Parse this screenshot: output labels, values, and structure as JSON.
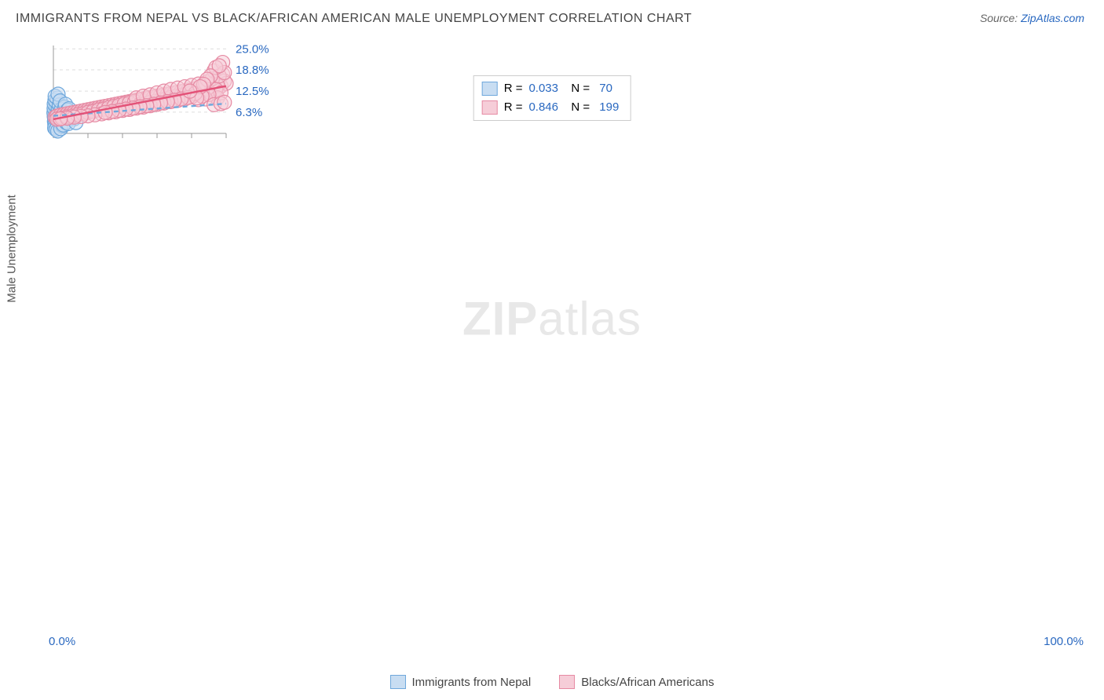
{
  "header": {
    "title": "IMMIGRANTS FROM NEPAL VS BLACK/AFRICAN AMERICAN MALE UNEMPLOYMENT CORRELATION CHART",
    "source_prefix": "Source: ",
    "source_link": "ZipAtlas.com"
  },
  "chart": {
    "type": "scatter",
    "ylabel": "Male Unemployment",
    "xlim": [
      0,
      100
    ],
    "ylim": [
      0,
      26
    ],
    "xticks": [
      0,
      20,
      40,
      60,
      80,
      100
    ],
    "xtick_labels": {
      "0": "0.0%",
      "100": "100.0%"
    },
    "ygrid": [
      6.3,
      12.5,
      18.8,
      25.0
    ],
    "ytick_labels": [
      "6.3%",
      "12.5%",
      "18.8%",
      "25.0%"
    ],
    "background_color": "#ffffff",
    "grid_color": "#dddddd",
    "axis_color": "#999999",
    "watermark": "ZIPatlas",
    "marker_radius": 9,
    "marker_stroke_width": 1.2,
    "trend_line_width": 2.4,
    "series": [
      {
        "key": "nepal",
        "label": "Immigrants from Nepal",
        "R": "0.033",
        "N": "70",
        "fill": "#c8ddf2",
        "stroke": "#6fa8dc",
        "fill_opacity": 0.55,
        "trend": {
          "x1": 0,
          "y1": 5.2,
          "x2": 100,
          "y2": 8.8,
          "dashed": true,
          "color": "#6fa8dc"
        },
        "points": [
          [
            0.5,
            5.0
          ],
          [
            0.7,
            5.4
          ],
          [
            1.0,
            4.7
          ],
          [
            1.2,
            5.8
          ],
          [
            0.3,
            6.1
          ],
          [
            0.9,
            4.1
          ],
          [
            1.4,
            6.7
          ],
          [
            0.6,
            3.6
          ],
          [
            2.0,
            7.0
          ],
          [
            2.3,
            4.0
          ],
          [
            1.8,
            5.6
          ],
          [
            0.4,
            7.4
          ],
          [
            1.1,
            3.1
          ],
          [
            2.6,
            6.3
          ],
          [
            3.0,
            5.1
          ],
          [
            0.8,
            2.6
          ],
          [
            1.6,
            8.1
          ],
          [
            2.1,
            3.3
          ],
          [
            3.3,
            4.6
          ],
          [
            0.5,
            8.7
          ],
          [
            1.3,
            2.1
          ],
          [
            2.8,
            7.5
          ],
          [
            3.6,
            5.8
          ],
          [
            0.7,
            1.6
          ],
          [
            4.0,
            4.3
          ],
          [
            1.9,
            9.2
          ],
          [
            2.4,
            2.7
          ],
          [
            4.4,
            6.1
          ],
          [
            0.9,
            9.8
          ],
          [
            3.1,
            3.5
          ],
          [
            4.8,
            5.4
          ],
          [
            1.5,
            1.1
          ],
          [
            5.2,
            4.8
          ],
          [
            2.2,
            10.4
          ],
          [
            3.8,
            6.6
          ],
          [
            5.6,
            5.0
          ],
          [
            1.0,
            11.0
          ],
          [
            4.2,
            3.9
          ],
          [
            6.0,
            5.6
          ],
          [
            2.5,
            0.7
          ],
          [
            6.4,
            4.5
          ],
          [
            3.4,
            8.4
          ],
          [
            6.8,
            5.2
          ],
          [
            4.6,
            7.1
          ],
          [
            7.2,
            4.9
          ],
          [
            5.0,
            3.0
          ],
          [
            7.6,
            5.8
          ],
          [
            2.7,
            11.6
          ],
          [
            8.0,
            4.4
          ],
          [
            5.4,
            2.2
          ],
          [
            8.4,
            5.5
          ],
          [
            3.9,
            9.6
          ],
          [
            8.8,
            4.7
          ],
          [
            6.2,
            6.3
          ],
          [
            9.2,
            5.3
          ],
          [
            4.3,
            1.4
          ],
          [
            9.6,
            4.9
          ],
          [
            6.6,
            7.8
          ],
          [
            10.0,
            5.6
          ],
          [
            5.8,
            2.5
          ],
          [
            10.5,
            4.6
          ],
          [
            7.0,
            8.6
          ],
          [
            11.0,
            5.2
          ],
          [
            7.4,
            3.2
          ],
          [
            11.5,
            5.8
          ],
          [
            8.2,
            6.9
          ],
          [
            12.0,
            4.3
          ],
          [
            8.6,
            2.9
          ],
          [
            13.0,
            3.2
          ],
          [
            9.0,
            7.3
          ]
        ]
      },
      {
        "key": "black",
        "label": "Blacks/African Americans",
        "R": "0.846",
        "N": "199",
        "fill": "#f6cdd8",
        "stroke": "#e68aa3",
        "fill_opacity": 0.55,
        "trend": {
          "x1": 0,
          "y1": 4.2,
          "x2": 100,
          "y2": 14.0,
          "dashed": false,
          "color": "#e35177"
        },
        "points": [
          [
            1,
            4.8
          ],
          [
            2,
            5.1
          ],
          [
            3,
            4.6
          ],
          [
            4,
            5.4
          ],
          [
            5,
            5.0
          ],
          [
            6,
            5.6
          ],
          [
            7,
            5.2
          ],
          [
            8,
            5.8
          ],
          [
            9,
            5.4
          ],
          [
            10,
            6.0
          ],
          [
            11,
            5.6
          ],
          [
            12,
            6.2
          ],
          [
            13,
            5.8
          ],
          [
            14,
            6.4
          ],
          [
            15,
            6.0
          ],
          [
            16,
            6.6
          ],
          [
            17,
            6.2
          ],
          [
            18,
            6.8
          ],
          [
            19,
            6.4
          ],
          [
            20,
            7.0
          ],
          [
            21,
            6.6
          ],
          [
            22,
            7.2
          ],
          [
            23,
            6.8
          ],
          [
            24,
            7.4
          ],
          [
            25,
            7.0
          ],
          [
            26,
            7.6
          ],
          [
            27,
            7.2
          ],
          [
            28,
            7.8
          ],
          [
            29,
            7.4
          ],
          [
            30,
            8.0
          ],
          [
            31,
            7.0
          ],
          [
            32,
            8.2
          ],
          [
            33,
            7.3
          ],
          [
            34,
            8.4
          ],
          [
            35,
            7.6
          ],
          [
            36,
            8.6
          ],
          [
            37,
            7.9
          ],
          [
            38,
            8.8
          ],
          [
            39,
            8.2
          ],
          [
            40,
            9.0
          ],
          [
            41,
            8.0
          ],
          [
            42,
            9.2
          ],
          [
            43,
            8.3
          ],
          [
            44,
            9.4
          ],
          [
            45,
            8.6
          ],
          [
            46,
            9.6
          ],
          [
            47,
            8.9
          ],
          [
            48,
            9.8
          ],
          [
            49,
            9.2
          ],
          [
            50,
            10.0
          ],
          [
            51,
            9.0
          ],
          [
            52,
            10.2
          ],
          [
            53,
            9.3
          ],
          [
            54,
            10.4
          ],
          [
            55,
            9.6
          ],
          [
            56,
            10.6
          ],
          [
            57,
            9.9
          ],
          [
            58,
            10.8
          ],
          [
            59,
            10.2
          ],
          [
            60,
            11.0
          ],
          [
            61,
            9.7
          ],
          [
            62,
            11.2
          ],
          [
            63,
            10.0
          ],
          [
            64,
            11.4
          ],
          [
            65,
            10.3
          ],
          [
            66,
            11.6
          ],
          [
            67,
            10.6
          ],
          [
            68,
            11.8
          ],
          [
            69,
            10.9
          ],
          [
            70,
            12.0
          ],
          [
            71,
            10.5
          ],
          [
            72,
            12.2
          ],
          [
            73,
            10.8
          ],
          [
            74,
            12.4
          ],
          [
            75,
            11.1
          ],
          [
            76,
            12.6
          ],
          [
            77,
            11.4
          ],
          [
            78,
            12.8
          ],
          [
            79,
            11.7
          ],
          [
            80,
            13.0
          ],
          [
            81,
            11.2
          ],
          [
            82,
            13.2
          ],
          [
            83,
            11.5
          ],
          [
            84,
            13.4
          ],
          [
            85,
            11.8
          ],
          [
            86,
            13.6
          ],
          [
            87,
            12.1
          ],
          [
            88,
            13.8
          ],
          [
            89,
            12.4
          ],
          [
            90,
            14.0
          ],
          [
            91,
            12.0
          ],
          [
            92,
            14.4
          ],
          [
            93,
            12.5
          ],
          [
            94,
            15.0
          ],
          [
            95,
            13.0
          ],
          [
            96,
            16.0
          ],
          [
            97,
            14.0
          ],
          [
            98,
            17.5
          ],
          [
            99,
            15.5
          ],
          [
            100,
            14.8
          ],
          [
            2,
            4.2
          ],
          [
            5,
            4.5
          ],
          [
            8,
            4.9
          ],
          [
            11,
            5.1
          ],
          [
            14,
            5.5
          ],
          [
            17,
            5.8
          ],
          [
            20,
            6.2
          ],
          [
            23,
            6.5
          ],
          [
            26,
            6.9
          ],
          [
            29,
            7.2
          ],
          [
            32,
            7.6
          ],
          [
            35,
            8.0
          ],
          [
            38,
            8.3
          ],
          [
            41,
            8.7
          ],
          [
            44,
            9.0
          ],
          [
            47,
            9.4
          ],
          [
            50,
            8.5
          ],
          [
            53,
            8.8
          ],
          [
            56,
            9.2
          ],
          [
            59,
            9.5
          ],
          [
            62,
            9.9
          ],
          [
            65,
            10.2
          ],
          [
            68,
            10.6
          ],
          [
            71,
            11.0
          ],
          [
            74,
            11.3
          ],
          [
            77,
            11.7
          ],
          [
            80,
            12.0
          ],
          [
            83,
            12.4
          ],
          [
            86,
            12.7
          ],
          [
            89,
            13.1
          ],
          [
            92,
            13.5
          ],
          [
            95,
            14.2
          ],
          [
            48,
            10.5
          ],
          [
            52,
            11.0
          ],
          [
            56,
            11.4
          ],
          [
            60,
            12.0
          ],
          [
            64,
            12.5
          ],
          [
            68,
            13.0
          ],
          [
            72,
            13.4
          ],
          [
            76,
            13.8
          ],
          [
            80,
            14.2
          ],
          [
            84,
            14.6
          ],
          [
            88,
            15.0
          ],
          [
            90,
            15.5
          ],
          [
            92,
            16.2
          ],
          [
            93,
            18.5
          ],
          [
            94,
            13.0
          ],
          [
            95,
            10.5
          ],
          [
            96,
            17.0
          ],
          [
            97,
            12.0
          ],
          [
            98,
            21.0
          ],
          [
            99,
            18.0
          ],
          [
            88,
            10.2
          ],
          [
            84,
            10.0
          ],
          [
            80,
            10.8
          ],
          [
            76,
            10.2
          ],
          [
            72,
            9.8
          ],
          [
            68,
            9.4
          ],
          [
            64,
            9.0
          ],
          [
            60,
            8.6
          ],
          [
            56,
            8.2
          ],
          [
            52,
            7.8
          ],
          [
            48,
            7.5
          ],
          [
            44,
            7.1
          ],
          [
            40,
            6.8
          ],
          [
            36,
            6.4
          ],
          [
            32,
            6.1
          ],
          [
            28,
            5.8
          ],
          [
            24,
            5.5
          ],
          [
            20,
            5.2
          ],
          [
            16,
            5.0
          ],
          [
            12,
            4.8
          ],
          [
            8,
            4.5
          ],
          [
            4,
            4.3
          ],
          [
            90,
            11.5
          ],
          [
            86,
            11.0
          ],
          [
            82,
            11.8
          ],
          [
            78,
            10.6
          ],
          [
            74,
            10.2
          ],
          [
            70,
            9.8
          ],
          [
            66,
            9.4
          ],
          [
            62,
            9.0
          ],
          [
            58,
            8.6
          ],
          [
            54,
            8.2
          ],
          [
            50,
            7.9
          ],
          [
            46,
            7.5
          ],
          [
            42,
            7.2
          ],
          [
            38,
            6.8
          ],
          [
            34,
            6.5
          ],
          [
            30,
            6.2
          ],
          [
            94,
            19.5
          ],
          [
            96,
            20.0
          ],
          [
            91,
            17.0
          ],
          [
            89,
            16.0
          ],
          [
            87,
            14.5
          ],
          [
            85,
            13.8
          ],
          [
            83,
            10.5
          ],
          [
            79,
            12.5
          ],
          [
            93,
            8.5
          ],
          [
            97,
            8.8
          ],
          [
            99,
            9.2
          ]
        ]
      }
    ],
    "legend_bottom": [
      {
        "label": "Immigrants from Nepal",
        "fill": "#c8ddf2",
        "stroke": "#6fa8dc"
      },
      {
        "label": "Blacks/African Americans",
        "fill": "#f6cdd8",
        "stroke": "#e68aa3"
      }
    ]
  }
}
